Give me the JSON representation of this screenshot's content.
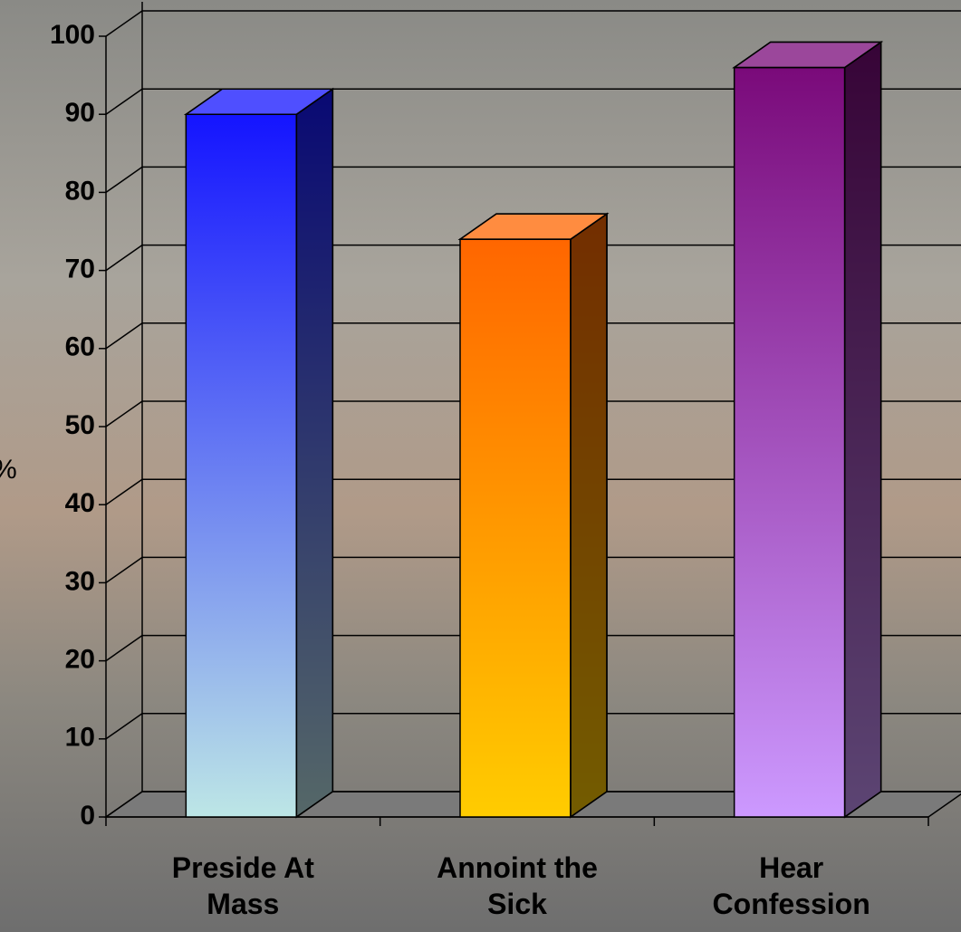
{
  "chart_data": {
    "type": "bar3d",
    "y_label": "%",
    "categories": [
      "Preside At Mass",
      "Annoint the Sick",
      "Hear Confession"
    ],
    "values": [
      90,
      74,
      96
    ],
    "colors": [
      [
        "#1414ff",
        "#bde6e6"
      ],
      [
        "#ff6600",
        "#ffcc00"
      ],
      [
        "#7a0a7a",
        "#cc99ff"
      ]
    ],
    "ylim": [
      0,
      100
    ],
    "yticks": [
      0,
      10,
      20,
      30,
      40,
      50,
      60,
      70,
      80,
      90,
      100
    ],
    "grid": true
  }
}
